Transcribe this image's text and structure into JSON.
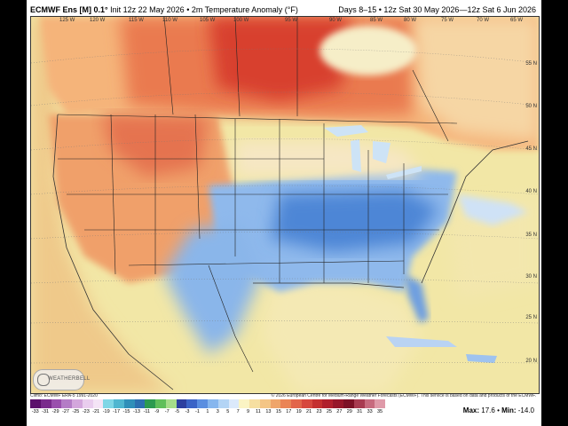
{
  "header": {
    "model": "ECMWF Ens [M] 0.1°",
    "init": "Init 12z 22 May 2026",
    "product": "2m Temperature Anomaly (°F)",
    "valid": "Days 8–15 • 12z Sat 30 May 2026—12z Sat 6 Jun 2026"
  },
  "lon_labels": [
    "125 W",
    "120 W",
    "115 W",
    "110 W",
    "105 W",
    "100 W",
    "95 W",
    "90 W",
    "85 W",
    "80 W",
    "75 W",
    "70 W",
    "65 W"
  ],
  "lat_labels": [
    "55 N",
    "50 N",
    "45 N",
    "40 N",
    "35 N",
    "30 N",
    "25 N",
    "20 N"
  ],
  "footer": {
    "left": "Climo: ECMWF ERA-5 1991-2020",
    "right": "© 2026 European Centre for Medium-Range Weather Forecasts (ECMWF). This service is based on data and products of the ECMWF."
  },
  "colorbar": {
    "ticks": [
      "-33",
      "-31",
      "-29",
      "-27",
      "-25",
      "-23",
      "-21",
      "-19",
      "-17",
      "-15",
      "-13",
      "-11",
      "-9",
      "-7",
      "-5",
      "-3",
      "-1",
      "1",
      "3",
      "5",
      "7",
      "9",
      "11",
      "13",
      "15",
      "17",
      "19",
      "21",
      "23",
      "25",
      "27",
      "29",
      "31",
      "33",
      "35"
    ],
    "colors": [
      "#5b0f6b",
      "#7a2a8c",
      "#9a4fad",
      "#b47cc6",
      "#d3a6dc",
      "#e9cdee",
      "#f4e4f6",
      "#7fd6e6",
      "#4fb6d0",
      "#2f8fb9",
      "#2c6fb0",
      "#2b9a4f",
      "#5fbf5a",
      "#a6dd8a",
      "#2c3f9f",
      "#3a63c6",
      "#5a8ee0",
      "#86b6ee",
      "#b3d4f5",
      "#dbe9fb",
      "#fbf4c4",
      "#f6dfa1",
      "#f4c585",
      "#efa56a",
      "#ea8456",
      "#e2654a",
      "#d6473d",
      "#c42f2f",
      "#b01f2c",
      "#961629",
      "#7c1025",
      "#a83a50",
      "#c76a7e",
      "#df9aa9"
    ],
    "max_label": "Max:",
    "max_value": "17.6",
    "min_label": "Min:",
    "min_value": "-14.0"
  },
  "logo": {
    "text": "WEATHERBELL"
  }
}
